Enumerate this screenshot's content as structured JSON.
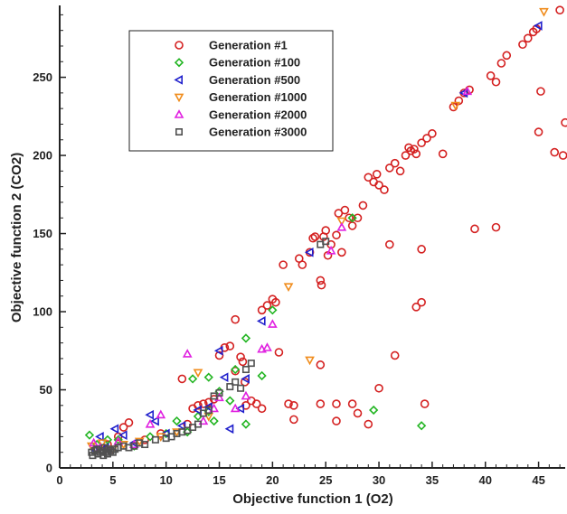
{
  "chart_data": {
    "type": "scatter",
    "xlabel": "Objective function 1 (O2)",
    "ylabel": "Objective function 2 (CO2)",
    "xlim": [
      0,
      47.5
    ],
    "ylim": [
      0,
      296
    ],
    "xticks": [
      0,
      5,
      10,
      15,
      20,
      25,
      30,
      35,
      40,
      45
    ],
    "yticks": [
      0,
      50,
      100,
      150,
      200,
      250
    ],
    "grid": false,
    "legend_position": "top-left",
    "series": [
      {
        "name": "Generation #1",
        "marker": "circle",
        "color": "#d42020",
        "points": [
          [
            3.5,
            12
          ],
          [
            4.5,
            15
          ],
          [
            5.5,
            20
          ],
          [
            6,
            26
          ],
          [
            6.5,
            29
          ],
          [
            8,
            18
          ],
          [
            9.5,
            22
          ],
          [
            11.5,
            57
          ],
          [
            12.5,
            38
          ],
          [
            13,
            40
          ],
          [
            13.5,
            41
          ],
          [
            14,
            42
          ],
          [
            14.5,
            44
          ],
          [
            15,
            72
          ],
          [
            15.5,
            77
          ],
          [
            16,
            78
          ],
          [
            16.5,
            95
          ],
          [
            17,
            71
          ],
          [
            17.2,
            68
          ],
          [
            17.4,
            55
          ],
          [
            17.5,
            40
          ],
          [
            18,
            43
          ],
          [
            18.5,
            41
          ],
          [
            19,
            101
          ],
          [
            19.5,
            104
          ],
          [
            20,
            108
          ],
          [
            20.3,
            106
          ],
          [
            20.6,
            74
          ],
          [
            21,
            130
          ],
          [
            21.5,
            41
          ],
          [
            22,
            31
          ],
          [
            22.5,
            134
          ],
          [
            22.8,
            130
          ],
          [
            23.5,
            138
          ],
          [
            23.8,
            147
          ],
          [
            24,
            148
          ],
          [
            24.5,
            120
          ],
          [
            24.6,
            117
          ],
          [
            24.8,
            148
          ],
          [
            25,
            152
          ],
          [
            25.2,
            136
          ],
          [
            25.5,
            143
          ],
          [
            26,
            149
          ],
          [
            26.2,
            163
          ],
          [
            26.5,
            138
          ],
          [
            26.8,
            165
          ],
          [
            27.2,
            160
          ],
          [
            27.5,
            155
          ],
          [
            28,
            160
          ],
          [
            28.5,
            168
          ],
          [
            29,
            186
          ],
          [
            29.5,
            183
          ],
          [
            29.8,
            188
          ],
          [
            30,
            181
          ],
          [
            30.5,
            178
          ],
          [
            31,
            192
          ],
          [
            31.5,
            195
          ],
          [
            32,
            190
          ],
          [
            32.5,
            200
          ],
          [
            32.8,
            205
          ],
          [
            33,
            203
          ],
          [
            33.3,
            204
          ],
          [
            33.5,
            201
          ],
          [
            34,
            208
          ],
          [
            34.5,
            211
          ],
          [
            35,
            214
          ],
          [
            36,
            201
          ],
          [
            37,
            231
          ],
          [
            37.5,
            235
          ],
          [
            38,
            240
          ],
          [
            38.5,
            242
          ],
          [
            39,
            153
          ],
          [
            40.5,
            251
          ],
          [
            41,
            154
          ],
          [
            41,
            247
          ],
          [
            41.5,
            259
          ],
          [
            42,
            264
          ],
          [
            43.5,
            271
          ],
          [
            44,
            275
          ],
          [
            44.5,
            279
          ],
          [
            44.8,
            281
          ],
          [
            45,
            215
          ],
          [
            45.2,
            241
          ],
          [
            46.5,
            202
          ],
          [
            47,
            293
          ],
          [
            47.3,
            200
          ],
          [
            47.5,
            221
          ],
          [
            24.5,
            66
          ],
          [
            24.5,
            41
          ],
          [
            26,
            41
          ],
          [
            26,
            30
          ],
          [
            27.5,
            41
          ],
          [
            28,
            35
          ],
          [
            29,
            28
          ],
          [
            30,
            51
          ],
          [
            31,
            143
          ],
          [
            31.5,
            72
          ],
          [
            33.5,
            103
          ],
          [
            34,
            106
          ],
          [
            34,
            140
          ],
          [
            34.3,
            41
          ],
          [
            16.5,
            62
          ],
          [
            12,
            28
          ],
          [
            22,
            40
          ],
          [
            19,
            38
          ]
        ]
      },
      {
        "name": "Generation #100",
        "marker": "diamond",
        "color": "#22b522",
        "points": [
          [
            2.8,
            21
          ],
          [
            3.5,
            15
          ],
          [
            4.5,
            18
          ],
          [
            5.5,
            18
          ],
          [
            7,
            14
          ],
          [
            8.5,
            20
          ],
          [
            10,
            22
          ],
          [
            11,
            30
          ],
          [
            12,
            23
          ],
          [
            13,
            33
          ],
          [
            14,
            36
          ],
          [
            14.5,
            30
          ],
          [
            15,
            49
          ],
          [
            16,
            43
          ],
          [
            16.5,
            63
          ],
          [
            17.5,
            83
          ],
          [
            17.5,
            28
          ],
          [
            19,
            59
          ],
          [
            20,
            101
          ],
          [
            27.5,
            160
          ],
          [
            29.5,
            37
          ],
          [
            34,
            27
          ],
          [
            12.5,
            57
          ],
          [
            14,
            58
          ]
        ]
      },
      {
        "name": "Generation #500",
        "marker": "triangle-left",
        "color": "#2020cc",
        "points": [
          [
            3.2,
            12
          ],
          [
            3.8,
            20
          ],
          [
            4.3,
            13
          ],
          [
            5.2,
            25
          ],
          [
            6,
            21
          ],
          [
            7,
            16
          ],
          [
            8.5,
            34
          ],
          [
            9,
            30
          ],
          [
            10,
            22
          ],
          [
            11.5,
            27
          ],
          [
            13,
            37
          ],
          [
            14,
            39
          ],
          [
            15,
            75
          ],
          [
            15.5,
            58
          ],
          [
            16,
            25
          ],
          [
            17,
            38
          ],
          [
            17.5,
            57
          ],
          [
            19,
            94
          ],
          [
            23.5,
            138
          ],
          [
            38,
            240
          ],
          [
            45,
            283
          ]
        ]
      },
      {
        "name": "Generation #1000",
        "marker": "triangle-down",
        "color": "#f08c1c",
        "points": [
          [
            3,
            14
          ],
          [
            4,
            16
          ],
          [
            5,
            12
          ],
          [
            6,
            15
          ],
          [
            7.5,
            17
          ],
          [
            9.5,
            20
          ],
          [
            11,
            23
          ],
          [
            13,
            61
          ],
          [
            14,
            33
          ],
          [
            21.5,
            116
          ],
          [
            23.5,
            69
          ],
          [
            26.5,
            158
          ],
          [
            37.2,
            232
          ],
          [
            45.5,
            292
          ]
        ]
      },
      {
        "name": "Generation #2000",
        "marker": "triangle-up",
        "color": "#e020e0",
        "points": [
          [
            3.2,
            16
          ],
          [
            3.8,
            13
          ],
          [
            4.5,
            12
          ],
          [
            5.5,
            17
          ],
          [
            7,
            15
          ],
          [
            8.5,
            28
          ],
          [
            9.5,
            34
          ],
          [
            12,
            73
          ],
          [
            13.5,
            30
          ],
          [
            14.5,
            38
          ],
          [
            15,
            45
          ],
          [
            16.5,
            38
          ],
          [
            17.5,
            46
          ],
          [
            19,
            76
          ],
          [
            19.5,
            77
          ],
          [
            20,
            92
          ],
          [
            25.5,
            139
          ],
          [
            26.5,
            154
          ],
          [
            38.3,
            241
          ]
        ]
      },
      {
        "name": "Generation #3000",
        "marker": "square",
        "color": "#505050",
        "points": [
          [
            3,
            10
          ],
          [
            3.3,
            11
          ],
          [
            3.5,
            12
          ],
          [
            3.8,
            10
          ],
          [
            4,
            11
          ],
          [
            4.2,
            13
          ],
          [
            4.4,
            10
          ],
          [
            4.6,
            12
          ],
          [
            4.8,
            11
          ],
          [
            5,
            10
          ],
          [
            3.1,
            8
          ],
          [
            3.6,
            9
          ],
          [
            4.1,
            8
          ],
          [
            4.5,
            9
          ],
          [
            5.2,
            12
          ],
          [
            5.5,
            13
          ],
          [
            6,
            14
          ],
          [
            6.5,
            13
          ],
          [
            7,
            14
          ],
          [
            7.5,
            16
          ],
          [
            8,
            15
          ],
          [
            9,
            18
          ],
          [
            10,
            19
          ],
          [
            10.5,
            20
          ],
          [
            11,
            22
          ],
          [
            11.5,
            23
          ],
          [
            12,
            24
          ],
          [
            12.5,
            26
          ],
          [
            13,
            28
          ],
          [
            13.5,
            35
          ],
          [
            14,
            37
          ],
          [
            14.5,
            46
          ],
          [
            15,
            48
          ],
          [
            16,
            52
          ],
          [
            16.5,
            55
          ],
          [
            17,
            51
          ],
          [
            17.5,
            63
          ],
          [
            18,
            67
          ],
          [
            24.5,
            143
          ],
          [
            25,
            145
          ]
        ]
      }
    ]
  }
}
